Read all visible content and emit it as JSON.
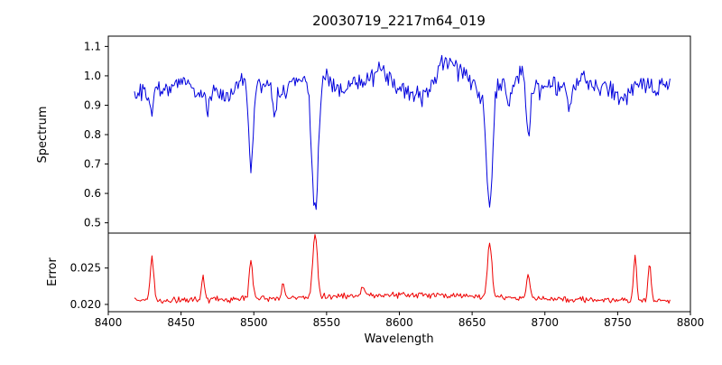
{
  "chart_data": {
    "type": "line",
    "title": "20030719_2217m64_019",
    "xlabel": "Wavelength",
    "xlim": [
      8400,
      8800
    ],
    "xticks": [
      8400,
      8450,
      8500,
      8550,
      8600,
      8650,
      8700,
      8750,
      8800
    ],
    "xtick_labels": [
      "8400",
      "8450",
      "8500",
      "8550",
      "8600",
      "8650",
      "8700",
      "8750",
      "8800"
    ],
    "background": "#ffffff",
    "frame_color": "#000000",
    "noise_seed": 20030719,
    "panels": [
      {
        "name": "spectrum",
        "ylabel": "Spectrum",
        "color": "#0000dd",
        "ylim": [
          0.465,
          1.135
        ],
        "yticks": [
          0.5,
          0.6,
          0.7,
          0.8,
          0.9,
          1.0,
          1.1
        ],
        "ytick_labels": [
          "0.5",
          "0.6",
          "0.7",
          "0.8",
          "0.9",
          "1.0",
          "1.1"
        ],
        "x_start": 8418,
        "x_end": 8786,
        "x_step": 0.8,
        "baseline": 0.965,
        "noise_amp": 0.04,
        "wiggle": [
          [
            0.02,
            7.3,
            0
          ],
          [
            0.014,
            3.1,
            2
          ],
          [
            0.012,
            23,
            1
          ]
        ],
        "absorption_lines": [
          {
            "center": 8430.0,
            "depth": 0.1,
            "sigma": 1.3
          },
          {
            "center": 8468.0,
            "depth": 0.06,
            "sigma": 1.2
          },
          {
            "center": 8498.0,
            "depth": 0.28,
            "sigma": 1.6
          },
          {
            "center": 8514.0,
            "depth": 0.1,
            "sigma": 1.2
          },
          {
            "center": 8542.1,
            "depth": 0.45,
            "sigma": 2.2
          },
          {
            "center": 8662.1,
            "depth": 0.4,
            "sigma": 2.0
          },
          {
            "center": 8675.0,
            "depth": 0.08,
            "sigma": 1.2
          },
          {
            "center": 8688.6,
            "depth": 0.21,
            "sigma": 1.4
          },
          {
            "center": 8717.0,
            "depth": 0.07,
            "sigma": 1.3
          }
        ],
        "emission_bumps": [
          {
            "center": 8582,
            "height": 0.035,
            "sigma": 10
          },
          {
            "center": 8634,
            "height": 0.075,
            "sigma": 7
          }
        ]
      },
      {
        "name": "error",
        "ylabel": "Error",
        "color": "#ee0000",
        "ylim": [
          0.019,
          0.0298
        ],
        "yticks": [
          0.02,
          0.025
        ],
        "ytick_labels": [
          "0.020",
          "0.025"
        ],
        "baseline": 0.0205,
        "noise_amp": 0.0005,
        "broad_hump": {
          "center": 8600,
          "height": 0.0008,
          "sigma": 70
        },
        "spikes": [
          {
            "center": 8430.0,
            "height": 0.0058,
            "sigma": 1.2
          },
          {
            "center": 8465.0,
            "height": 0.0033,
            "sigma": 1.0
          },
          {
            "center": 8498.0,
            "height": 0.0052,
            "sigma": 1.2
          },
          {
            "center": 8520.0,
            "height": 0.0016,
            "sigma": 1.0
          },
          {
            "center": 8542.1,
            "height": 0.0086,
            "sigma": 1.6
          },
          {
            "center": 8575.0,
            "height": 0.0012,
            "sigma": 1.0
          },
          {
            "center": 8662.1,
            "height": 0.0075,
            "sigma": 1.5
          },
          {
            "center": 8688.6,
            "height": 0.0032,
            "sigma": 1.2
          },
          {
            "center": 8762.0,
            "height": 0.006,
            "sigma": 1.0
          },
          {
            "center": 8772.0,
            "height": 0.0052,
            "sigma": 1.0
          }
        ]
      }
    ]
  }
}
